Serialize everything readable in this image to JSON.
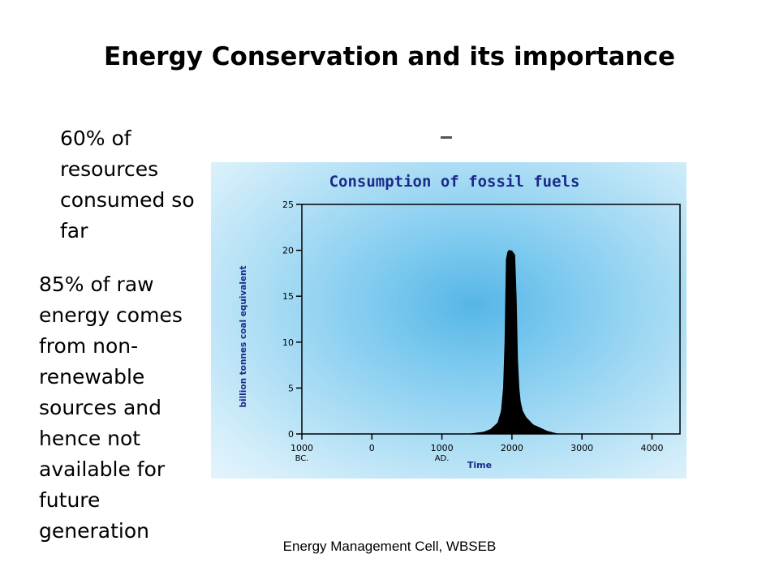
{
  "slide": {
    "title": "Energy Conservation and its importance",
    "bullet_1": "60% of resources consumed so far",
    "bullet_2": "85% of raw energy comes from non-renewable sources and hence not available for future generation",
    "stray_mark": "-",
    "footer": "Energy Management Cell, WBSEB"
  },
  "chart_data": {
    "type": "area",
    "title": "Consumption of fossil fuels",
    "xlabel": "Time",
    "ylabel": "billion tonnes coal equivalent",
    "x_ticks": [
      {
        "value": -1000,
        "label": "1000",
        "sub": "BC."
      },
      {
        "value": 0,
        "label": "0",
        "sub": ""
      },
      {
        "value": 1000,
        "label": "1000",
        "sub": "AD."
      },
      {
        "value": 2000,
        "label": "2000",
        "sub": ""
      },
      {
        "value": 3000,
        "label": "3000",
        "sub": ""
      },
      {
        "value": 4000,
        "label": "4000",
        "sub": ""
      }
    ],
    "y_ticks": [
      0,
      5,
      10,
      15,
      20,
      25
    ],
    "xlim": [
      -1000,
      4400
    ],
    "ylim": [
      0,
      25
    ],
    "grid": false,
    "series": [
      {
        "x": [
          1400,
          1600,
          1700,
          1800,
          1850,
          1880,
          1900,
          1920,
          1940,
          1960,
          2000,
          2040,
          2060,
          2080,
          2100,
          2120,
          2150,
          2200,
          2300,
          2500,
          2650
        ],
        "y": [
          0,
          0.2,
          0.5,
          1.2,
          2.5,
          5,
          10,
          19,
          19.8,
          20,
          19.9,
          19.5,
          15,
          8,
          5,
          3.5,
          2.5,
          1.8,
          1,
          0.3,
          0
        ]
      }
    ],
    "colors": {
      "fill": "#000000",
      "axis": "#000000",
      "text": "#1a2a8a",
      "background_center": "#56b6e6",
      "background_edge": "#e4f4fc"
    }
  }
}
